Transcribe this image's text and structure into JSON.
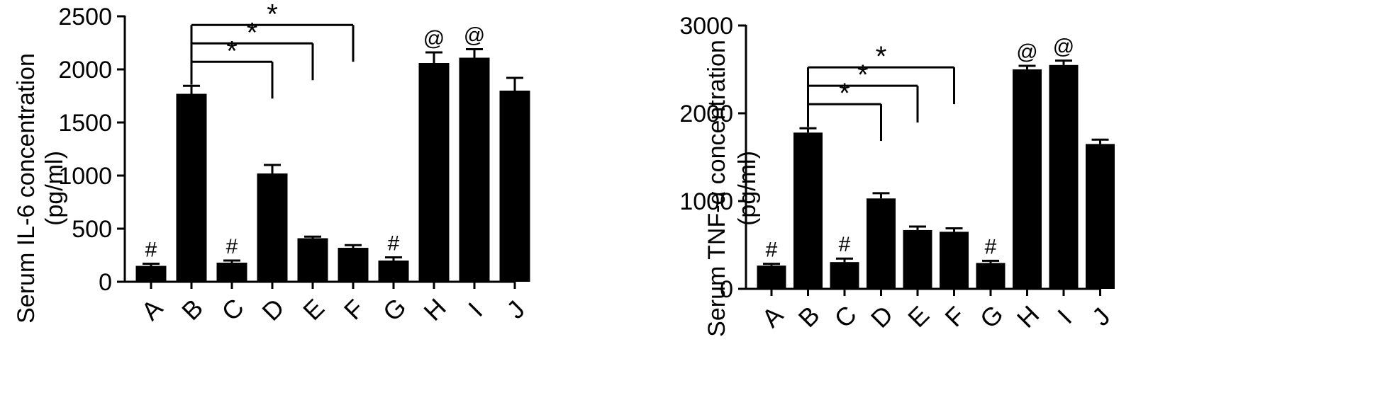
{
  "chart_data": [
    {
      "type": "bar",
      "ylabel_line1": "Serum IL-6 concentration",
      "ylabel_line2": "(pg/ml)",
      "ylim": [
        0,
        2500
      ],
      "yticks": [
        0,
        500,
        1000,
        1500,
        2000,
        2500
      ],
      "categories": [
        "A",
        "B",
        "C",
        "D",
        "E",
        "F",
        "G",
        "H",
        "I",
        "J"
      ],
      "values": [
        150,
        1770,
        180,
        1020,
        410,
        320,
        200,
        2060,
        2110,
        1800
      ],
      "errors": [
        20,
        75,
        20,
        80,
        15,
        25,
        30,
        100,
        80,
        120
      ],
      "bar_marks": [
        "#",
        "",
        "#",
        "",
        "",
        "",
        "#",
        "@",
        "@",
        ""
      ],
      "significance": [
        {
          "from": "B",
          "to": "D",
          "label": "*"
        },
        {
          "from": "B",
          "to": "E",
          "label": "*"
        },
        {
          "from": "B",
          "to": "F",
          "label": "*"
        }
      ]
    },
    {
      "type": "bar",
      "ylabel_line1": "Serum TNF-α concentration",
      "ylabel_line2": "(pg/ml)",
      "ylim": [
        0,
        3000
      ],
      "yticks": [
        0,
        1000,
        2000,
        3000
      ],
      "categories": [
        "A",
        "B",
        "C",
        "D",
        "E",
        "F",
        "G",
        "H",
        "I",
        "J"
      ],
      "values": [
        265,
        1780,
        305,
        1030,
        670,
        650,
        295,
        2500,
        2550,
        1650
      ],
      "errors": [
        20,
        50,
        40,
        60,
        40,
        40,
        25,
        40,
        50,
        50
      ],
      "bar_marks": [
        "#",
        "",
        "#",
        "",
        "",
        "",
        "#",
        "@",
        "@",
        ""
      ],
      "significance": [
        {
          "from": "B",
          "to": "D",
          "label": "*"
        },
        {
          "from": "B",
          "to": "E",
          "label": "*"
        },
        {
          "from": "B",
          "to": "F",
          "label": "*"
        }
      ]
    }
  ]
}
